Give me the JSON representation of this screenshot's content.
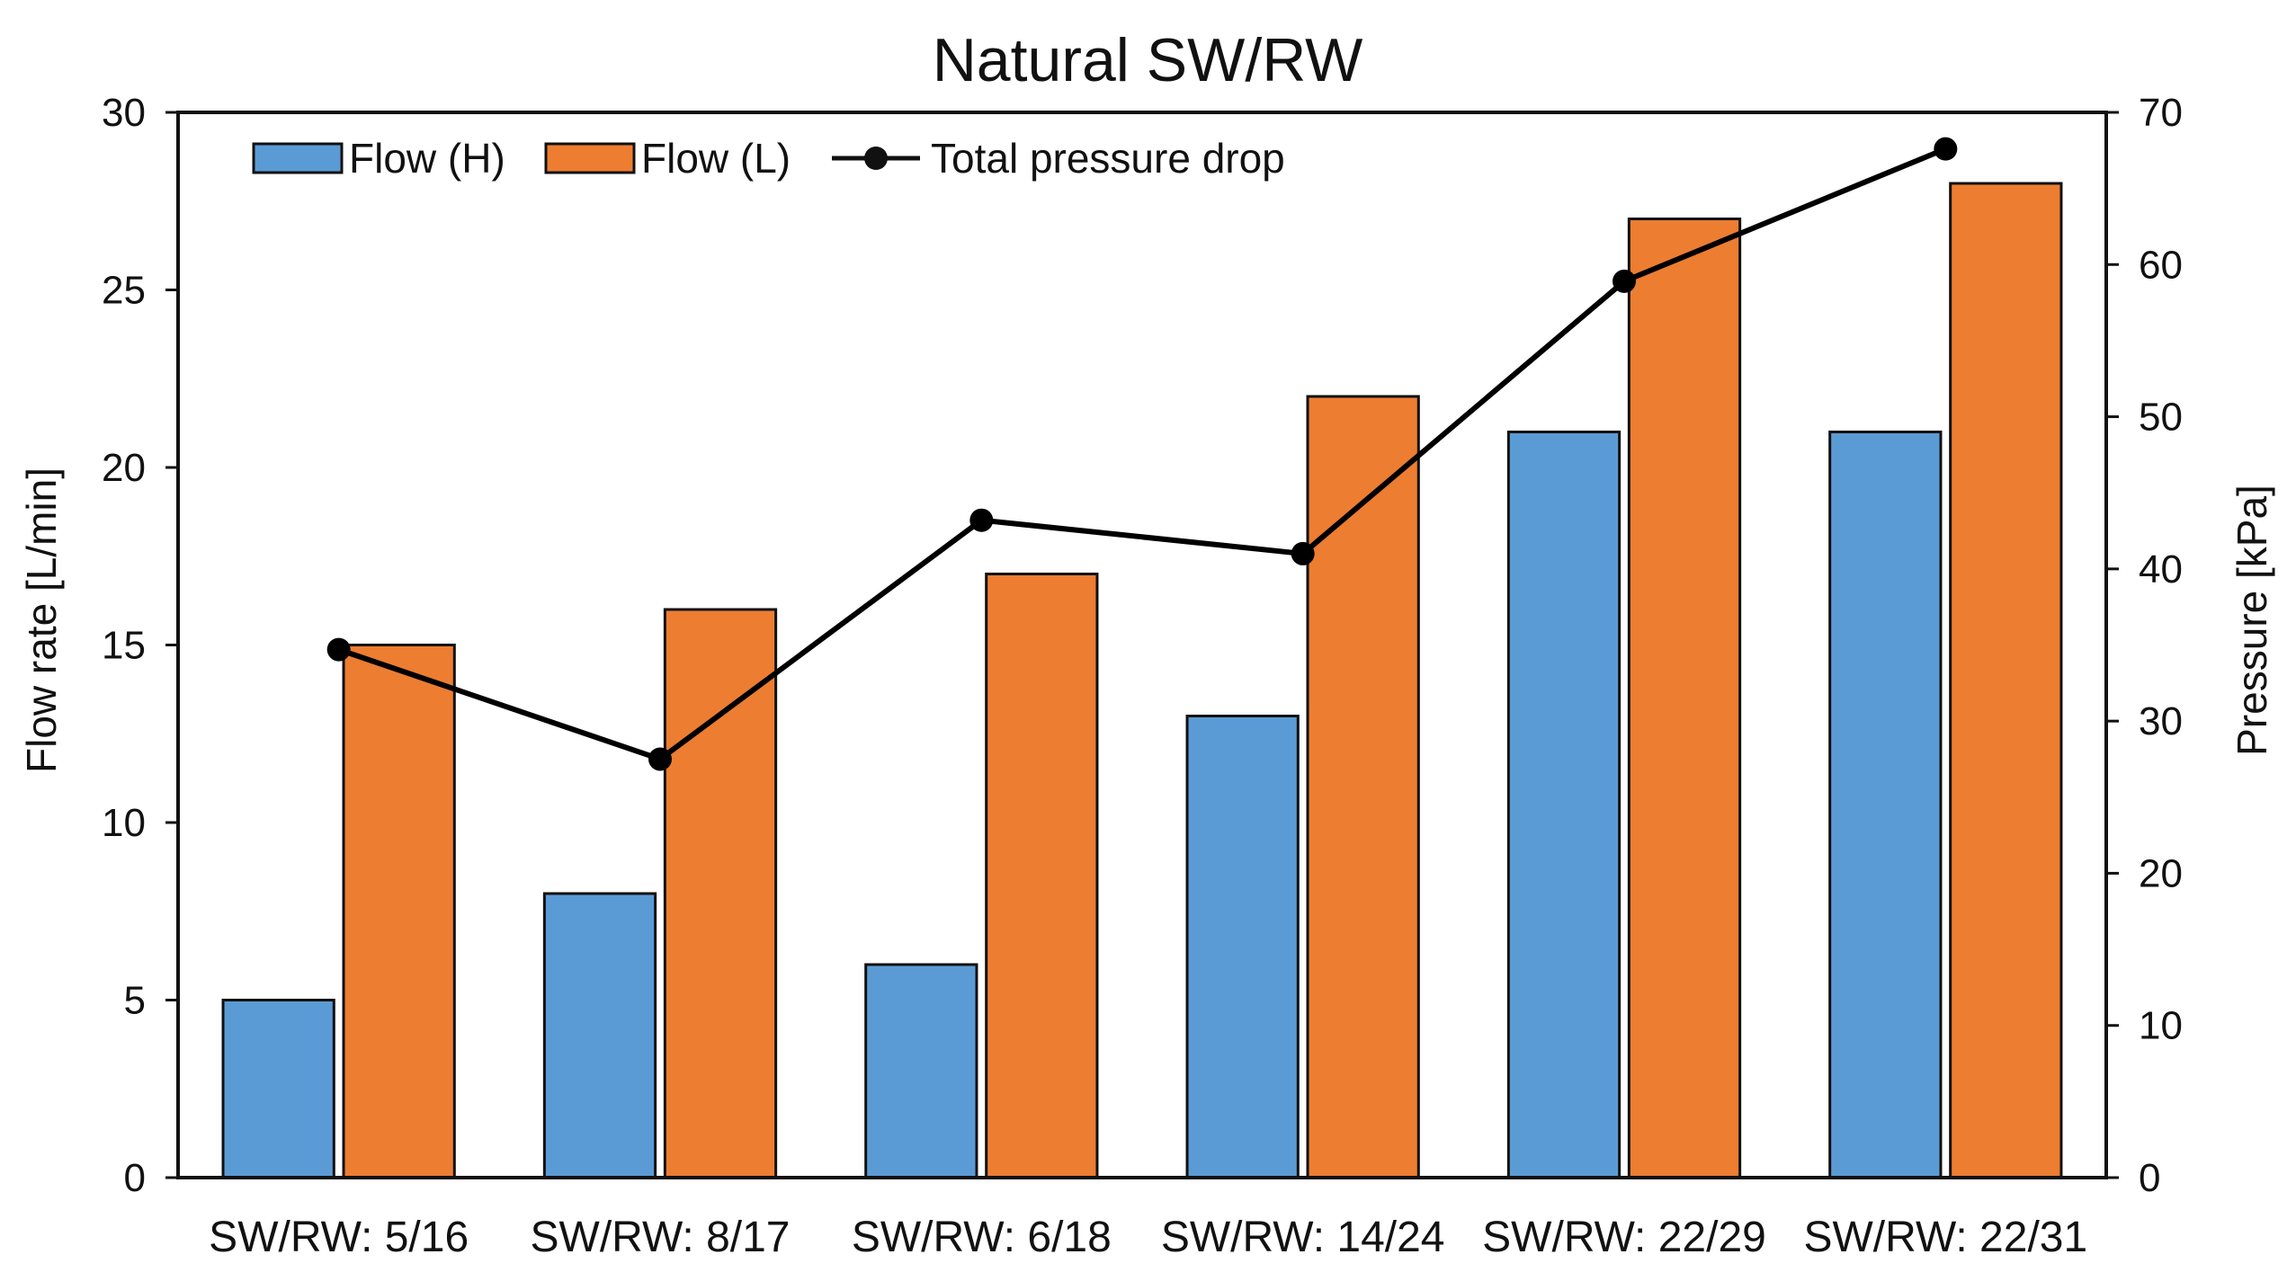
{
  "chart_data": {
    "type": "bar",
    "title": "Natural SW/RW",
    "categories": [
      "SW/RW: 5/16",
      "SW/RW: 8/17",
      "SW/RW: 6/18",
      "SW/RW: 14/24",
      "SW/RW: 22/29",
      "SW/RW: 22/31"
    ],
    "series": [
      {
        "name": "Flow (H)",
        "kind": "bar",
        "axis": "left",
        "color": "#5B9BD5",
        "values": [
          5,
          8,
          6,
          13,
          21,
          21
        ]
      },
      {
        "name": "Flow (L)",
        "kind": "bar",
        "axis": "left",
        "color": "#ED7D31",
        "values": [
          15,
          16,
          17,
          22,
          27,
          28
        ]
      },
      {
        "name": "Total pressure drop",
        "kind": "line",
        "axis": "right",
        "color": "#000000",
        "values": [
          34.7,
          27.5,
          43.2,
          41.0,
          58.9,
          67.6
        ]
      }
    ],
    "ylabel": "Flow rate [L/min]",
    "y2label": "Pressure [kPa]",
    "ylim": [
      0,
      30
    ],
    "y2lim": [
      0,
      70
    ],
    "yticks": [
      "0",
      "5",
      "10",
      "15",
      "20",
      "25",
      "30"
    ],
    "y2ticks": [
      "0",
      "10",
      "20",
      "30",
      "40",
      "50",
      "60",
      "70"
    ],
    "grid": false,
    "legend_position": "top-left"
  }
}
